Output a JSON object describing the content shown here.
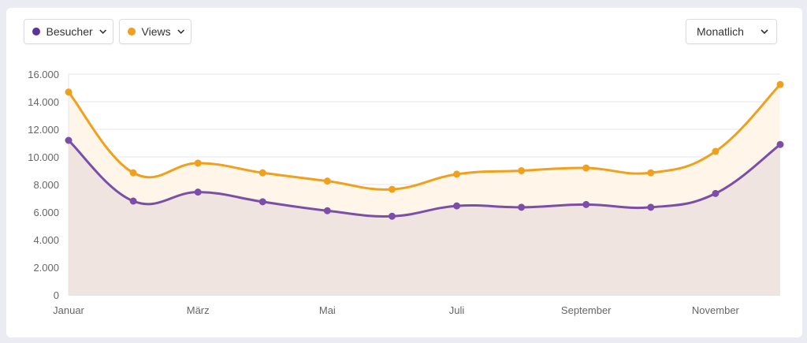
{
  "legend": [
    {
      "label": "Besucher",
      "color": "#5b34a0"
    },
    {
      "label": "Views",
      "color": "#f0a01c"
    }
  ],
  "period_select": {
    "value": "Monatlich"
  },
  "chart_data": {
    "type": "area",
    "x": [
      1,
      2,
      3,
      4,
      5,
      6,
      7,
      8,
      9,
      10,
      11,
      12
    ],
    "x_tick_labels": [
      {
        "x": 1,
        "label": "Januar"
      },
      {
        "x": 3,
        "label": "März"
      },
      {
        "x": 5,
        "label": "Mai"
      },
      {
        "x": 7,
        "label": "Juli"
      },
      {
        "x": 9,
        "label": "September"
      },
      {
        "x": 11,
        "label": "November"
      }
    ],
    "y_tick_labels": [
      "0",
      "2.000",
      "4.000",
      "6.000",
      "8.000",
      "10.000",
      "12.000",
      "14.000",
      "16.000"
    ],
    "ylim": [
      0,
      16000
    ],
    "grid": true,
    "series": [
      {
        "name": "Views",
        "color": "#f0a01c",
        "fill": "#fff5e8",
        "values": [
          14700,
          8850,
          9550,
          8850,
          8250,
          7650,
          8750,
          9000,
          9200,
          8850,
          10400,
          15250
        ]
      },
      {
        "name": "Besucher",
        "color": "#7b4fa8",
        "fill": "#efe4e0",
        "values": [
          11200,
          6800,
          7450,
          6750,
          6100,
          5700,
          6450,
          6350,
          6550,
          6350,
          7350,
          10900
        ]
      }
    ]
  }
}
